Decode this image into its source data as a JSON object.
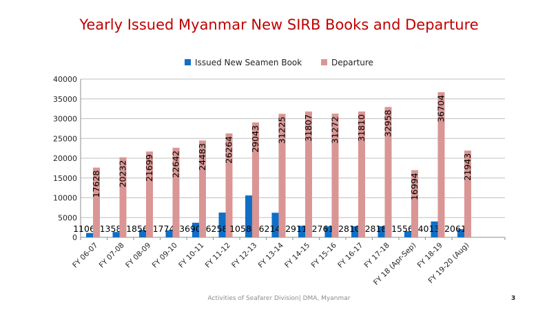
{
  "chart_data": {
    "type": "bar",
    "title": "Yearly Issued Myanmar New SIRB Books and Departure",
    "xlabel": "",
    "ylabel": "",
    "ylim": [
      0,
      40000
    ],
    "yticks": [
      0,
      5000,
      10000,
      15000,
      20000,
      25000,
      30000,
      35000,
      40000
    ],
    "grid": "horizontal",
    "legend_position": "top",
    "categories": [
      "FY 06-07",
      "FY 07-08",
      "FY 08-09",
      "FY 09-10",
      "FY 10-11",
      "FY 11-12",
      "FY 12-13",
      "FY 13-14",
      "FY 14-15",
      "FY 15-16",
      "FY 16-17",
      "FY 17-18",
      "FY 18 (Apr-Sep)",
      "FY 18-19",
      "FY 19-20 (Aug)"
    ],
    "series": [
      {
        "name": "Issued New Seamen Book",
        "color": "#0f6fc6",
        "values": [
          1106,
          1358,
          1856,
          1774,
          3690,
          6258,
          10588,
          6214,
          2911,
          2761,
          2810,
          2818,
          1556,
          4013,
          2061
        ]
      },
      {
        "name": "Departure",
        "color": "#d99694",
        "values": [
          17628,
          20232,
          21699,
          22642,
          24483,
          26264,
          29043,
          31225,
          31807,
          31272,
          31810,
          32958,
          16994,
          36704,
          21943
        ]
      }
    ]
  },
  "footer": {
    "text": "Activities of Seafarer Division| DMA, Myanmar",
    "page_number": "3"
  }
}
